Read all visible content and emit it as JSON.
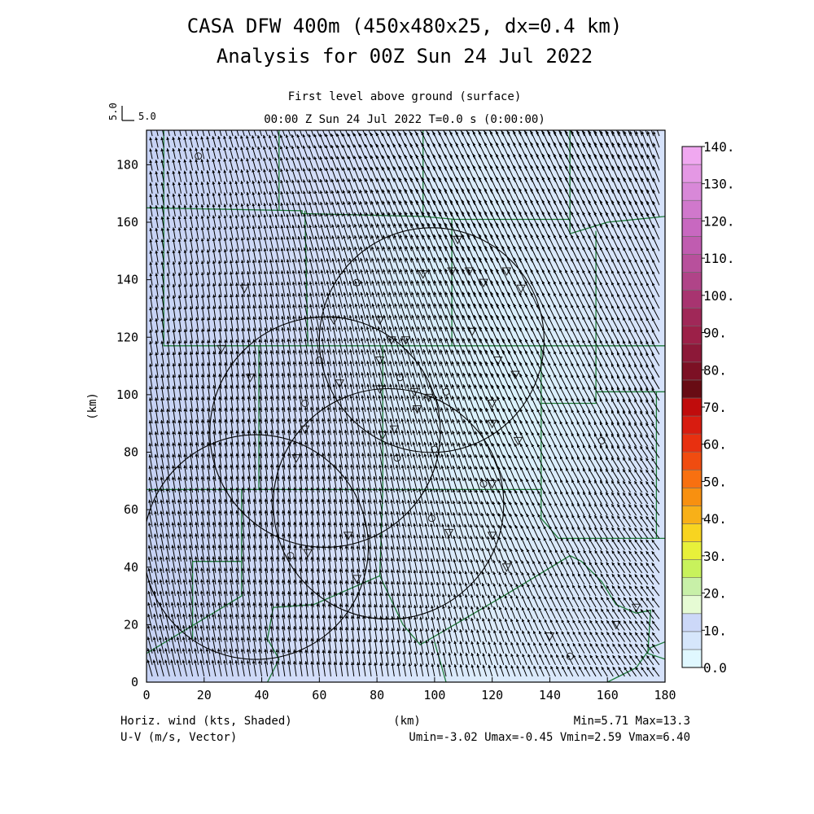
{
  "header": {
    "title_line1": "CASA DFW 400m (450x480x25, dx=0.4 km)",
    "title_line2": "Analysis for 00Z Sun 24 Jul 2022",
    "level": "First level above ground (surface)",
    "time": "00:00 Z Sun 24 Jul 2022    T=0.0 s (0:00:00)",
    "ref_vector_rotated": "5.0",
    "ref_vector_label": "5.0"
  },
  "footer": {
    "left1": "Horiz. wind (kts, Shaded)",
    "left2": "U-V (m/s, Vector)",
    "center": "(km)",
    "right1": "Min=5.71 Max=13.3",
    "right2": "Umin=-3.02 Umax=-0.45 Vmin=2.59 Vmax=6.40"
  },
  "colors": {
    "background": "#ffffff",
    "field_light": "#d4f0fb",
    "field_mid": "#d6defa",
    "vector": "#000000",
    "county_line": "#1e7a3a",
    "radar_circle": "#000000"
  },
  "chart_data": {
    "type": "heatmap",
    "title": "CASA DFW 400m (450x480x25, dx=0.4 km)",
    "xlabel": "(km)",
    "ylabel": "(km)",
    "xlim": [
      0,
      180
    ],
    "ylim": [
      0,
      192
    ],
    "x_ticks": [
      0,
      20,
      40,
      60,
      80,
      100,
      120,
      140,
      160,
      180
    ],
    "y_ticks": [
      0,
      20,
      40,
      60,
      80,
      100,
      120,
      140,
      160,
      180
    ],
    "shaded_field": "Horiz. wind (kts)",
    "vector_field": "U-V (m/s)",
    "stats": {
      "min": 5.71,
      "max": 13.3,
      "umin": -3.02,
      "umax": -0.45,
      "vmin": 2.59,
      "vmax": 6.4
    },
    "colorbar": {
      "labels": [
        "0.0",
        "10.",
        "20.",
        "30.",
        "40.",
        "50.",
        "60.",
        "70.",
        "80.",
        "90.",
        "100.",
        "110.",
        "120.",
        "130.",
        "140."
      ],
      "min": 0,
      "max": 140,
      "step": 5,
      "colors": [
        "#e0f8ff",
        "#d6e6fb",
        "#ccd8f8",
        "#e6fbd4",
        "#c8f0a8",
        "#c8f25c",
        "#e8f03a",
        "#f8d420",
        "#f8b018",
        "#f89010",
        "#f87010",
        "#f04c10",
        "#e83010",
        "#d81c10",
        "#c00c0c",
        "#680c14",
        "#7c1024",
        "#8c1838",
        "#9c2048",
        "#a02858",
        "#a83470",
        "#b04488",
        "#b8509c",
        "#c05cb0",
        "#c868c0",
        "#d078cc",
        "#d888d8",
        "#e498e4",
        "#f0a8f0"
      ]
    },
    "radar_circles_km": [
      {
        "cx": 38,
        "cy": 47,
        "r": 39
      },
      {
        "cx": 62,
        "cy": 87,
        "r": 40
      },
      {
        "cx": 84,
        "cy": 62,
        "r": 40
      },
      {
        "cx": 99,
        "cy": 119,
        "r": 39
      }
    ],
    "vectors": {
      "u_range": [
        -3.02,
        -0.45
      ],
      "v_range": [
        2.59,
        6.4
      ],
      "spacing_km": 4
    }
  }
}
